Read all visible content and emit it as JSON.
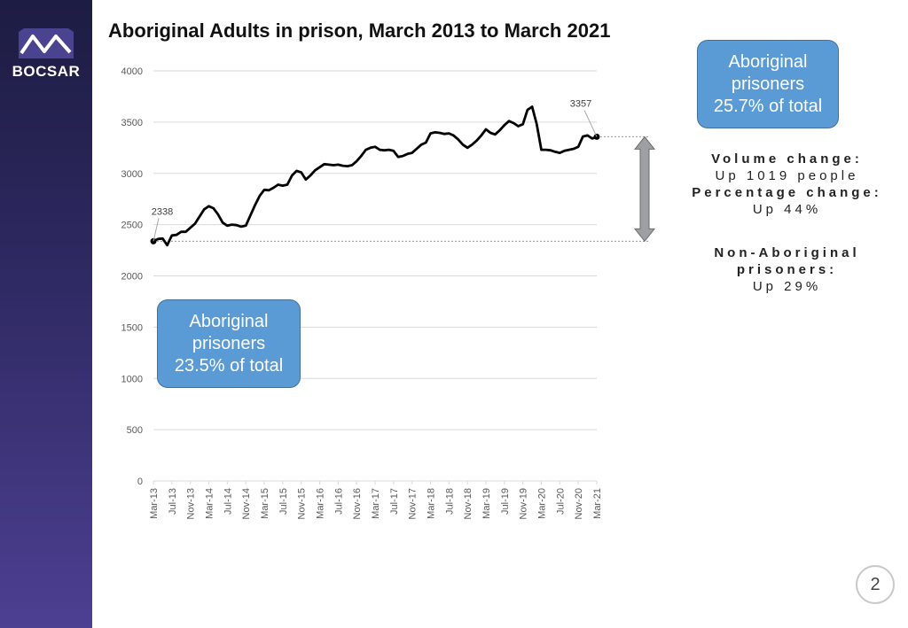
{
  "brand": {
    "name": "BOCSAR"
  },
  "title": "Aboriginal Adults in prison, March 2013 to March 2021",
  "callouts": {
    "end": {
      "line1": "Aboriginal",
      "line2": "prisoners",
      "line3": "25.7% of total"
    },
    "start": {
      "line1": "Aboriginal",
      "line2": "prisoners",
      "line3": "23.5% of total"
    }
  },
  "stats": {
    "volume_label": "Volume change:",
    "volume_value": "Up 1019 people",
    "percentage_label": "Percentage change:",
    "percentage_value": "Up 44%",
    "non_aboriginal_label_1": "Non-Aboriginal",
    "non_aboriginal_label_2": "prisoners:",
    "non_aboriginal_value": "Up 29%"
  },
  "page_number": "2",
  "colors": {
    "line": "#000000",
    "callout_fill": "#5b9bd5",
    "callout_border": "#41719c",
    "arrow_fill": "#9e9fa3",
    "gridline": "#d9d9d9",
    "sidebar_top": "#1d1c42",
    "sidebar_bottom": "#4d3f92"
  },
  "chart_data": {
    "type": "line",
    "title": "Aboriginal Adults in prison, March 2013 to March 2021",
    "xlabel": "",
    "ylabel": "",
    "ylim": [
      0,
      4000
    ],
    "yticks": [
      0,
      500,
      1000,
      1500,
      2000,
      2500,
      3000,
      3500,
      4000
    ],
    "grid": true,
    "x": [
      "Mar-13",
      "Apr-13",
      "May-13",
      "Jun-13",
      "Jul-13",
      "Aug-13",
      "Sep-13",
      "Oct-13",
      "Nov-13",
      "Dec-13",
      "Jan-14",
      "Feb-14",
      "Mar-14",
      "Apr-14",
      "May-14",
      "Jun-14",
      "Jul-14",
      "Aug-14",
      "Sep-14",
      "Oct-14",
      "Nov-14",
      "Dec-14",
      "Jan-15",
      "Feb-15",
      "Mar-15",
      "Apr-15",
      "May-15",
      "Jun-15",
      "Jul-15",
      "Aug-15",
      "Sep-15",
      "Oct-15",
      "Nov-15",
      "Dec-15",
      "Jan-16",
      "Feb-16",
      "Mar-16",
      "Apr-16",
      "May-16",
      "Jun-16",
      "Jul-16",
      "Aug-16",
      "Sep-16",
      "Oct-16",
      "Nov-16",
      "Dec-16",
      "Jan-17",
      "Feb-17",
      "Mar-17",
      "Apr-17",
      "May-17",
      "Jun-17",
      "Jul-17",
      "Aug-17",
      "Sep-17",
      "Oct-17",
      "Nov-17",
      "Dec-17",
      "Jan-18",
      "Feb-18",
      "Mar-18",
      "Apr-18",
      "May-18",
      "Jun-18",
      "Jul-18",
      "Aug-18",
      "Sep-18",
      "Oct-18",
      "Nov-18",
      "Dec-18",
      "Jan-19",
      "Feb-19",
      "Mar-19",
      "Apr-19",
      "May-19",
      "Jun-19",
      "Jul-19",
      "Aug-19",
      "Sep-19",
      "Oct-19",
      "Nov-19",
      "Dec-19",
      "Jan-20",
      "Feb-20",
      "Mar-20",
      "Apr-20",
      "May-20",
      "Jun-20",
      "Jul-20",
      "Aug-20",
      "Sep-20",
      "Oct-20",
      "Nov-20",
      "Dec-20",
      "Jan-21",
      "Feb-21",
      "Mar-21"
    ],
    "x_tick_labels": [
      "Mar-13",
      "Jul-13",
      "Nov-13",
      "Mar-14",
      "Jul-14",
      "Nov-14",
      "Mar-15",
      "Jul-15",
      "Nov-15",
      "Mar-16",
      "Jul-16",
      "Nov-16",
      "Mar-17",
      "Jul-17",
      "Nov-17",
      "Mar-18",
      "Jul-18",
      "Nov-18",
      "Mar-19",
      "Jul-19",
      "Nov-19",
      "Mar-20",
      "Jul-20",
      "Nov-20",
      "Mar-21"
    ],
    "series": [
      {
        "values": [
          2338,
          2360,
          2365,
          2300,
          2395,
          2400,
          2430,
          2430,
          2470,
          2510,
          2580,
          2650,
          2680,
          2660,
          2600,
          2520,
          2490,
          2500,
          2495,
          2480,
          2490,
          2590,
          2690,
          2780,
          2840,
          2835,
          2860,
          2890,
          2880,
          2890,
          2980,
          3025,
          3010,
          2940,
          2980,
          3030,
          3060,
          3090,
          3085,
          3080,
          3085,
          3075,
          3070,
          3080,
          3120,
          3170,
          3230,
          3250,
          3260,
          3230,
          3225,
          3230,
          3220,
          3160,
          3170,
          3190,
          3200,
          3240,
          3280,
          3300,
          3390,
          3400,
          3395,
          3385,
          3390,
          3370,
          3330,
          3280,
          3250,
          3280,
          3320,
          3370,
          3430,
          3395,
          3380,
          3420,
          3470,
          3510,
          3490,
          3460,
          3480,
          3620,
          3650,
          3480,
          3230,
          3230,
          3225,
          3210,
          3200,
          3220,
          3230,
          3240,
          3260,
          3360,
          3370,
          3340,
          3357
        ]
      }
    ],
    "annotations": [
      {
        "label": "2338",
        "x": "Mar-13",
        "y": 2338
      },
      {
        "label": "3357",
        "x": "Mar-21",
        "y": 3357
      }
    ]
  }
}
